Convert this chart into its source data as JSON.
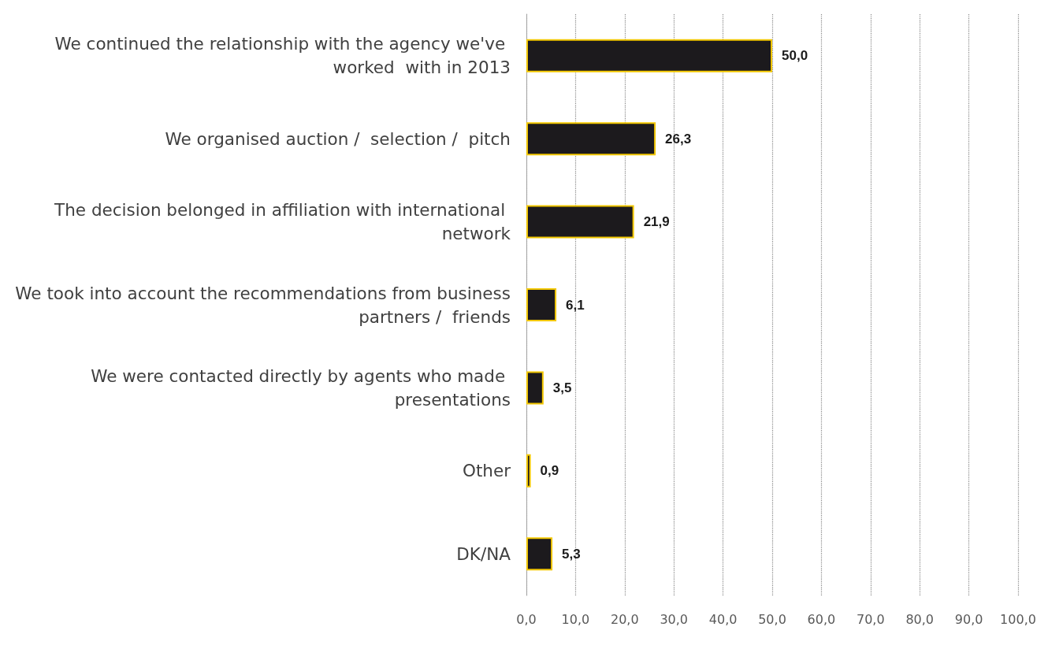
{
  "chart_data": {
    "type": "bar",
    "orientation": "horizontal",
    "categories": [
      "We continued the relationship with the agency we've worked  with in 2013",
      "We organised auction /  selection /  pitch",
      "The decision belonged in affiliation with international network",
      "We took into account the recommendations from business partners /  friends",
      "We were contacted directly by agents who made presentations",
      "Other",
      "DK/NA"
    ],
    "values": [
      50.0,
      26.3,
      21.9,
      6.1,
      3.5,
      0.9,
      5.3
    ],
    "value_labels": [
      "50,0",
      "26,3",
      "21,9",
      "6,1",
      "3,5",
      "0,9",
      "5,3"
    ],
    "color": "#1c1a1d",
    "xlim": [
      0,
      100
    ],
    "xticks": [
      {
        "value": 0,
        "label": "0,0"
      },
      {
        "value": 10,
        "label": "10,0"
      },
      {
        "value": 20,
        "label": "20,0"
      },
      {
        "value": 30,
        "label": "30,0"
      },
      {
        "value": 40,
        "label": "40,0"
      },
      {
        "value": 50,
        "label": "50,0"
      },
      {
        "value": 60,
        "label": "60,0"
      },
      {
        "value": 70,
        "label": "70,0"
      },
      {
        "value": 80,
        "label": "80,0"
      },
      {
        "value": 90,
        "label": "90,0"
      },
      {
        "value": 100,
        "label": "100,0"
      }
    ],
    "grid": "x"
  }
}
